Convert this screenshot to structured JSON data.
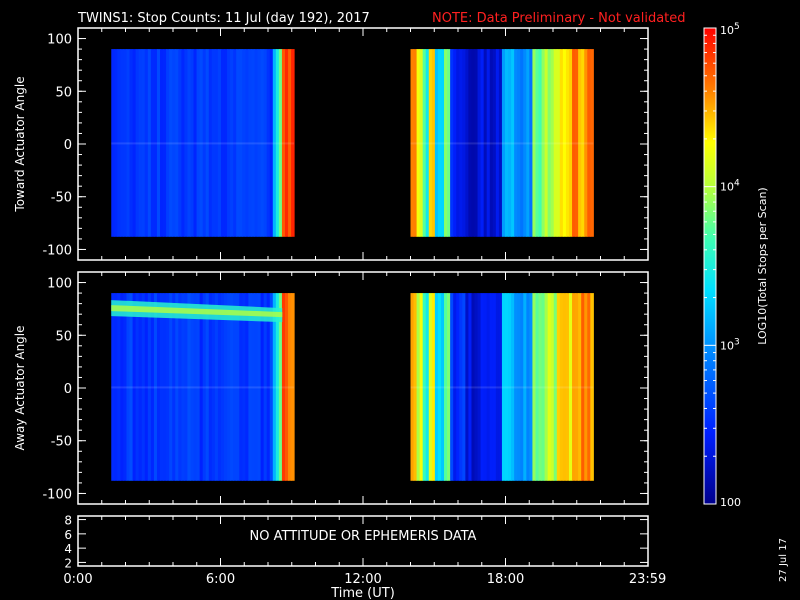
{
  "header": {
    "title": "TWINS1: Stop Counts: 11 Jul (day 192), 2017",
    "note": "NOTE: Data Preliminary - Not validated",
    "note_color": "#ff2020"
  },
  "colorbar": {
    "label": "LOG10(Total Stops per Scan)",
    "ticks": [
      "100",
      "10^3",
      "10^4",
      "10^5"
    ],
    "range": [
      100,
      100000
    ],
    "scale": "log"
  },
  "date_stamp": "27 Jul 17",
  "ephemeris_message": "NO ATTITUDE OR EPHEMERIS DATA",
  "chart_data": [
    {
      "type": "heatmap",
      "title": "",
      "ylabel": "Toward Actuator Angle",
      "xlabel": "",
      "ylim": [
        -110,
        110
      ],
      "yticks": [
        100,
        50,
        0,
        -50,
        -100
      ],
      "xlim": [
        0,
        24
      ],
      "data_blocks": [
        {
          "t_start": 1.4,
          "t_end": 9.1,
          "angle_range": [
            -88,
            90
          ],
          "typical_log_counts": 2.55
        },
        {
          "t_start": 14.0,
          "t_end": 21.7,
          "angle_range": [
            -88,
            90
          ],
          "typical_log_counts": 3.4
        }
      ]
    },
    {
      "type": "heatmap",
      "title": "",
      "ylabel": "Away Actuator Angle",
      "xlabel": "",
      "ylim": [
        -110,
        110
      ],
      "yticks": [
        100,
        50,
        0,
        -50,
        -100
      ],
      "xlim": [
        0,
        24
      ],
      "data_blocks": [
        {
          "t_start": 1.4,
          "t_end": 9.1,
          "angle_range": [
            -88,
            90
          ],
          "typical_log_counts": 2.6,
          "band_angle": 72
        },
        {
          "t_start": 14.0,
          "t_end": 21.7,
          "angle_range": [
            -88,
            90
          ],
          "typical_log_counts": 3.5
        }
      ]
    },
    {
      "type": "line",
      "title": "",
      "ylabel": "",
      "xlabel": "Time (UT)",
      "ylim": [
        1.5,
        8.5
      ],
      "yticks": [
        8,
        6,
        4,
        2
      ],
      "x_tick_labels": [
        "0:00",
        "6:00",
        "12:00",
        "18:00",
        "23:59"
      ],
      "x_ticks": [
        0,
        6,
        12,
        18,
        23.983
      ],
      "series": []
    }
  ]
}
